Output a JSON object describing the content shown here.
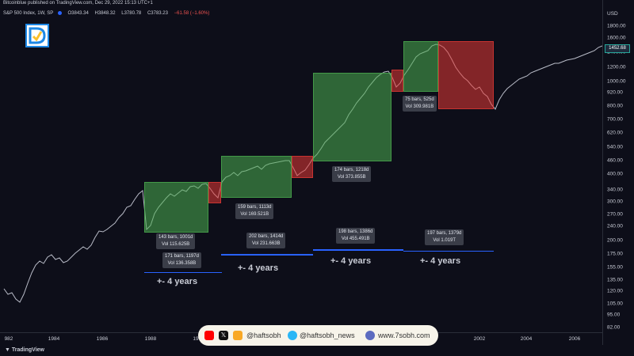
{
  "header": {
    "published": "Bitcoinblue published on TradingView.com, Dec 29, 2022 15:13 UTC+1",
    "symbol": "S&P 500 Index, 1W, SP",
    "open": "O3843.34",
    "high": "H3848.32",
    "low": "L3780.78",
    "close": "C3783.23",
    "change": "−61.58 (−1.60%)"
  },
  "price_scale": {
    "currency": "USD",
    "current_price": "1452.68",
    "labels": [
      "1800.00",
      "1600.00",
      "1400.00",
      "1200.00",
      "1000.00",
      "920.00",
      "800.00",
      "700.00",
      "620.00",
      "540.00",
      "460.00",
      "400.00",
      "340.00",
      "300.00",
      "270.00",
      "240.00",
      "200.00",
      "175.00",
      "155.00",
      "135.00",
      "120.00",
      "105.00",
      "95.00",
      "82.00"
    ]
  },
  "time_scale": {
    "labels": [
      "982",
      "1984",
      "1986",
      "1988",
      "19",
      "2002",
      "2004",
      "2006"
    ]
  },
  "info_boxes": [
    {
      "line1": "143 bars, 1001d",
      "line2": "Vol 115.625B"
    },
    {
      "line1": "171 bars, 1197d",
      "line2": "Vol 136.358B"
    },
    {
      "line1": "159 bars, 1113d",
      "line2": "Vol 169.521B"
    },
    {
      "line1": "202 bars, 1414d",
      "line2": "Vol 231.663B"
    },
    {
      "line1": "174 bars, 1218d",
      "line2": "Vol 373.855B"
    },
    {
      "line1": "198 bars, 1386d",
      "line2": "Vol 455.491B"
    },
    {
      "line1": "75 bars, 525d",
      "line2": "Vol 309.981B"
    },
    {
      "line1": "197 bars, 1379d",
      "line2": "Vol 1.019T"
    }
  ],
  "annotations": [
    "+- 4 years",
    "+- 4 years",
    "+- 4 years",
    "+- 4 years"
  ],
  "banner": {
    "youtube": "@haftsobh",
    "telegram": "@haftsobh_news",
    "website": "www.7sobh.com"
  },
  "footer": {
    "brand": "TradingView"
  },
  "colors": {
    "bull": "#4caf50",
    "bear": "#e53935",
    "line": "#2962ff",
    "bg": "#0d0e19"
  }
}
